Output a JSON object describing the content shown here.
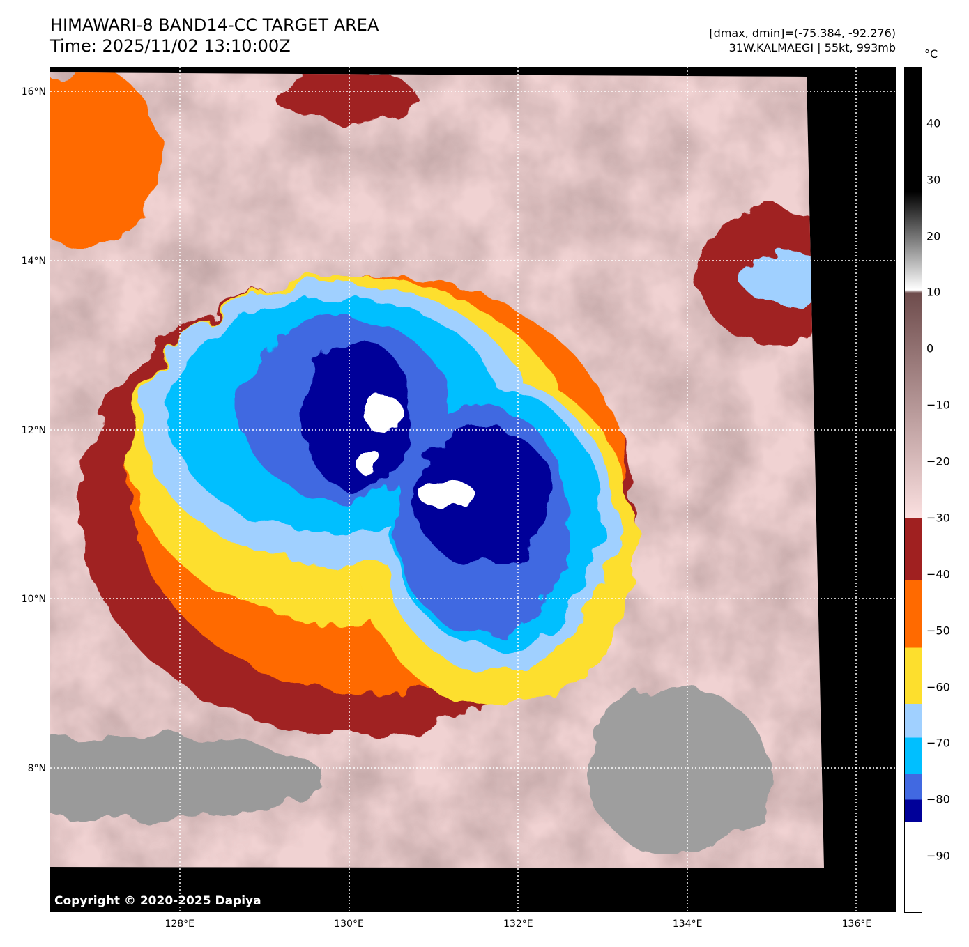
{
  "header": {
    "title": "HIMAWARI-8 BAND14-CC TARGET AREA",
    "time": "Time: 2025/11/02 13:10:00Z",
    "dminmax": "[dmax, dmin]=(-75.384, -92.276)",
    "storm": "31W.KALMAEGI | 55kt, 993mb"
  },
  "map": {
    "lat_labels": [
      {
        "lat": 16,
        "label": "16°N"
      },
      {
        "lat": 14,
        "label": "14°N"
      },
      {
        "lat": 12,
        "label": "12°N"
      },
      {
        "lat": 10,
        "label": "10°N"
      },
      {
        "lat": 8,
        "label": "8°N"
      }
    ],
    "lon_labels": [
      {
        "lon": 128,
        "label": "128°E"
      },
      {
        "lon": 130,
        "label": "130°E"
      },
      {
        "lon": 132,
        "label": "132°E"
      },
      {
        "lon": 134,
        "label": "134°E"
      },
      {
        "lon": 136,
        "label": "136°E"
      }
    ],
    "lon_range": [
      126.47,
      136.47
    ],
    "lat_range": [
      6.3,
      16.3
    ],
    "copyright": "Copyright © 2020-2025 Dapiya"
  },
  "colorbar": {
    "unit": "°C",
    "range": [
      -100,
      50
    ],
    "ticks": [
      {
        "v": 40,
        "label": "40"
      },
      {
        "v": 30,
        "label": "30"
      },
      {
        "v": 20,
        "label": "20"
      },
      {
        "v": 10,
        "label": "10"
      },
      {
        "v": 0,
        "label": "0"
      },
      {
        "v": -10,
        "label": "−10"
      },
      {
        "v": -20,
        "label": "−20"
      },
      {
        "v": -30,
        "label": "−30"
      },
      {
        "v": -40,
        "label": "−40"
      },
      {
        "v": -50,
        "label": "−50"
      },
      {
        "v": -60,
        "label": "−60"
      },
      {
        "v": -70,
        "label": "−70"
      },
      {
        "v": -80,
        "label": "−80"
      },
      {
        "v": -90,
        "label": "−90"
      }
    ],
    "stops": [
      {
        "v": 50,
        "color": "#000000"
      },
      {
        "v": 28,
        "color": "#000000"
      },
      {
        "v": 10.5,
        "color": "#ffffff"
      },
      {
        "v": 10,
        "color": "#6e4c4c"
      },
      {
        "v": -30,
        "color": "#fbe0e0"
      },
      {
        "v": -30,
        "color": "#a02020"
      },
      {
        "v": -41,
        "color": "#a02020"
      },
      {
        "v": -41,
        "color": "#ff6a00"
      },
      {
        "v": -53,
        "color": "#ff6a00"
      },
      {
        "v": -53,
        "color": "#fddf2d"
      },
      {
        "v": -63,
        "color": "#fddf2d"
      },
      {
        "v": -63,
        "color": "#a0d0ff"
      },
      {
        "v": -69,
        "color": "#a0d0ff"
      },
      {
        "v": -69,
        "color": "#00bfff"
      },
      {
        "v": -75.5,
        "color": "#00bfff"
      },
      {
        "v": -75.5,
        "color": "#4169e1"
      },
      {
        "v": -80,
        "color": "#4169e1"
      },
      {
        "v": -80,
        "color": "#000099"
      },
      {
        "v": -84,
        "color": "#000099"
      },
      {
        "v": -84,
        "color": "#ffffff"
      },
      {
        "v": -100,
        "color": "#ffffff"
      }
    ]
  }
}
